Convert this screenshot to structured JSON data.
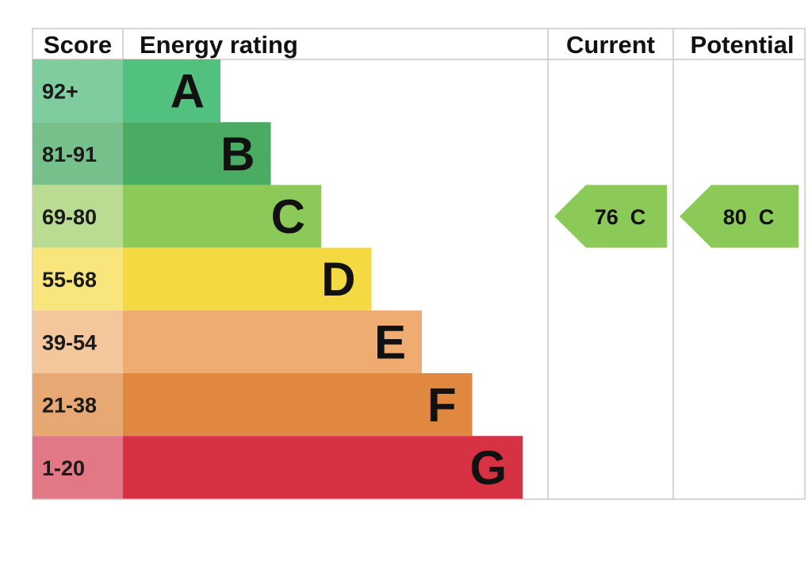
{
  "headers": {
    "score": "Score",
    "energy_rating": "Energy rating",
    "current": "Current",
    "potential": "Potential"
  },
  "chart_data": {
    "type": "bar",
    "bands": [
      {
        "letter": "A",
        "score_range": "92+",
        "min": 92,
        "max": 100,
        "color": "#52c17f",
        "score_bg": "#7fcc9f"
      },
      {
        "letter": "B",
        "score_range": "81-91",
        "min": 81,
        "max": 91,
        "color": "#4aab62",
        "score_bg": "#78c08b"
      },
      {
        "letter": "C",
        "score_range": "69-80",
        "min": 69,
        "max": 80,
        "color": "#8bc958",
        "score_bg": "#b9dc92"
      },
      {
        "letter": "D",
        "score_range": "55-68",
        "min": 55,
        "max": 68,
        "color": "#f5d942",
        "score_bg": "#f8e67c"
      },
      {
        "letter": "E",
        "score_range": "39-54",
        "min": 39,
        "max": 54,
        "color": "#efab70",
        "score_bg": "#f3c69c"
      },
      {
        "letter": "F",
        "score_range": "21-38",
        "min": 21,
        "max": 38,
        "color": "#e08740",
        "score_bg": "#e8a873"
      },
      {
        "letter": "G",
        "score_range": "1-20",
        "min": 1,
        "max": 20,
        "color": "#d63243",
        "score_bg": "#e27785"
      }
    ],
    "current": {
      "score": 76,
      "band": "C",
      "label": "76  C",
      "color": "#8bc958"
    },
    "potential": {
      "score": 80,
      "band": "C",
      "label": "80  C",
      "color": "#8bc958"
    }
  }
}
